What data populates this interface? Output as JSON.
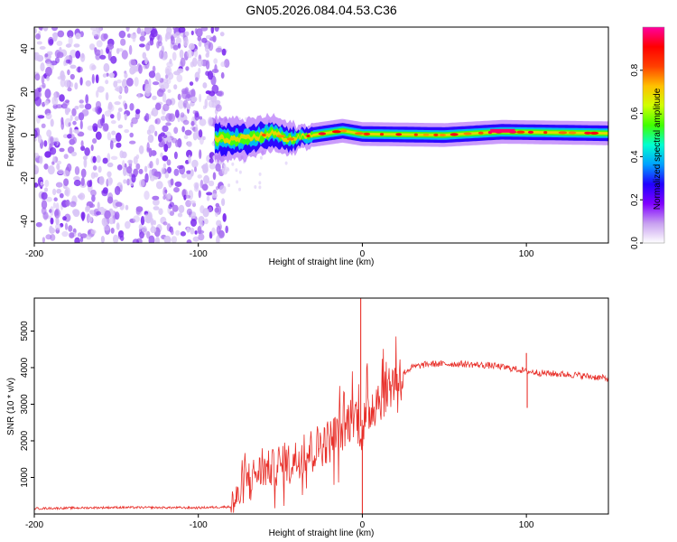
{
  "figure": {
    "title": "GN05.2026.084.04.53.C36"
  },
  "colors": {
    "snr_line": "#e8302a",
    "axis": "#000000",
    "scatter": "#8a3cf0"
  },
  "chart_data": [
    {
      "type": "heatmap",
      "name": "spectrogram",
      "title": "GN05.2026.084.04.53.C36",
      "xlabel": "Height of straight line (km)",
      "ylabel": "Frequency (Hz)",
      "xlim": [
        -200,
        150
      ],
      "ylim": [
        -50,
        50
      ],
      "xticks": [
        -200,
        -100,
        0,
        100
      ],
      "yticks": [
        -40,
        -20,
        0,
        20,
        40
      ],
      "colorbar": {
        "label": "Normalized spectral amplitude",
        "range": [
          0,
          1
        ],
        "ticks": [
          0,
          0.2,
          0.4,
          0.6,
          0.8
        ],
        "tick_labels": [
          "0.0",
          "0.2",
          "0.4",
          "0.6",
          "0.8"
        ],
        "colormap": [
          "#ffffff",
          "#c8a0f0",
          "#8000ff",
          "#2000ff",
          "#00a0ff",
          "#00ffd0",
          "#40ff00",
          "#d0ff00",
          "#ffc000",
          "#ff4000",
          "#ff0000",
          "#ff00a0"
        ]
      },
      "regions": [
        {
          "name": "noise",
          "x_range": [
            -200,
            -87
          ],
          "freq_range": [
            -50,
            50
          ],
          "amplitude_approx": 0.15
        },
        {
          "name": "signal_trace",
          "x_range": [
            -90,
            150
          ],
          "center_freq_hz": 0,
          "half_width_hz": 3,
          "amplitude_approx": 0.6
        }
      ],
      "trace_center_freq": [
        {
          "x": -90,
          "y": -2
        },
        {
          "x": -70,
          "y": -2
        },
        {
          "x": -55,
          "y": 1
        },
        {
          "x": -45,
          "y": -2
        },
        {
          "x": -30,
          "y": 0
        },
        {
          "x": -12,
          "y": 2
        },
        {
          "x": 0,
          "y": 0.5
        },
        {
          "x": 50,
          "y": 0
        },
        {
          "x": 85,
          "y": 1.5
        },
        {
          "x": 150,
          "y": 0.8
        }
      ]
    },
    {
      "type": "line",
      "name": "snr",
      "xlabel": "Height of straight line (km)",
      "ylabel": "SNR (10 * v/v)",
      "xlim": [
        -200,
        150
      ],
      "ylim": [
        0,
        5900
      ],
      "xticks": [
        -200,
        -100,
        0,
        100
      ],
      "yticks": [
        1000,
        2000,
        3000,
        4000,
        5000
      ],
      "series": [
        {
          "name": "SNR",
          "x": [
            -200,
            -150,
            -100,
            -80,
            -75,
            -70,
            -60,
            -50,
            -40,
            -30,
            -20,
            -10,
            -5,
            0,
            5,
            10,
            20,
            30,
            40,
            60,
            80,
            95,
            100,
            110,
            130,
            150
          ],
          "y": [
            150,
            180,
            170,
            200,
            500,
            1000,
            1200,
            1300,
            1500,
            1800,
            2000,
            2400,
            2800,
            2300,
            2900,
            3200,
            3700,
            4000,
            4100,
            4100,
            4050,
            3950,
            3900,
            3850,
            3800,
            3700
          ],
          "spikes": [
            {
              "x": -1,
              "y": 5900
            },
            {
              "x": 100,
              "y": 4400
            },
            {
              "x": 100.5,
              "y": 2900
            },
            {
              "x": 0,
              "y": 0
            }
          ]
        }
      ]
    }
  ]
}
